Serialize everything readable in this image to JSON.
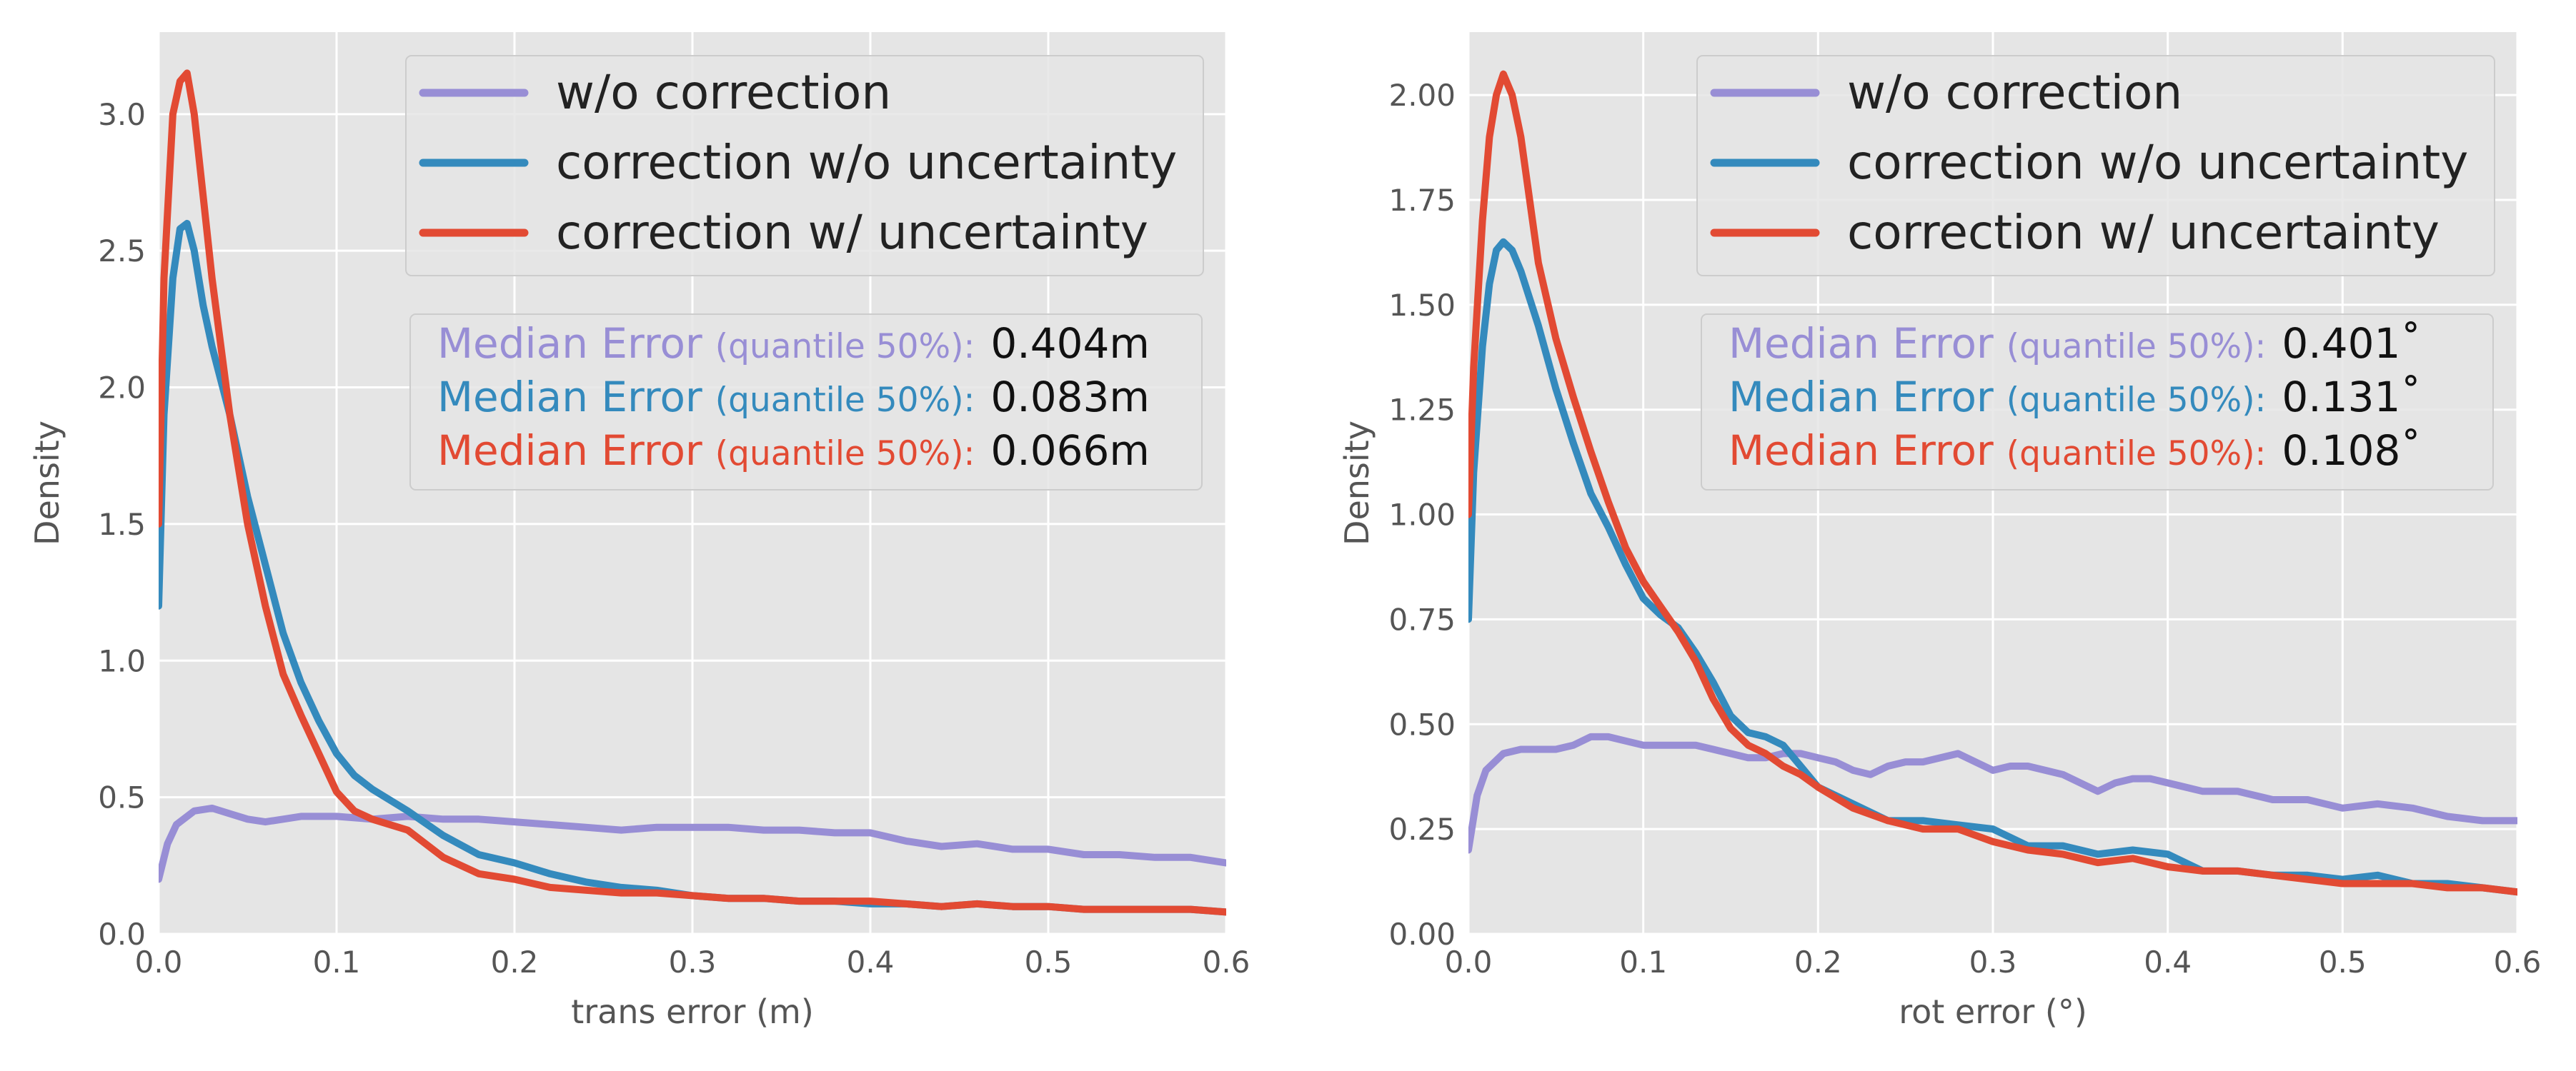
{
  "chart_data": [
    {
      "type": "line",
      "xlabel": "trans error (m)",
      "ylabel": "Density",
      "xlim": [
        0,
        0.6
      ],
      "ylim": [
        0,
        3.3
      ],
      "xticks": [
        "0.0",
        "0.1",
        "0.2",
        "0.3",
        "0.4",
        "0.5",
        "0.6"
      ],
      "yticks": [
        "0.0",
        "0.5",
        "1.0",
        "1.5",
        "2.0",
        "2.5",
        "3.0"
      ],
      "xtick_values": [
        0,
        0.1,
        0.2,
        0.3,
        0.4,
        0.5,
        0.6
      ],
      "ytick_values": [
        0,
        0.5,
        1.0,
        1.5,
        2.0,
        2.5,
        3.0
      ],
      "legend": [
        "w/o correction",
        "correction w/o uncertainty",
        "correction w/ uncertainty"
      ],
      "medians": [
        {
          "label": "Median Error",
          "qualifier": "(quantile 50%):",
          "value": "0.404m"
        },
        {
          "label": "Median Error",
          "qualifier": "(quantile 50%):",
          "value": "0.083m"
        },
        {
          "label": "Median Error",
          "qualifier": "(quantile 50%):",
          "value": "0.066m"
        }
      ],
      "series": [
        {
          "name": "w/o correction",
          "color": "#988ed5",
          "x": [
            0,
            0.005,
            0.01,
            0.02,
            0.03,
            0.04,
            0.05,
            0.06,
            0.07,
            0.08,
            0.1,
            0.12,
            0.14,
            0.16,
            0.18,
            0.2,
            0.22,
            0.24,
            0.26,
            0.28,
            0.3,
            0.32,
            0.34,
            0.36,
            0.38,
            0.4,
            0.42,
            0.44,
            0.46,
            0.48,
            0.5,
            0.52,
            0.54,
            0.56,
            0.58,
            0.6
          ],
          "y": [
            0.2,
            0.33,
            0.4,
            0.45,
            0.46,
            0.44,
            0.42,
            0.41,
            0.42,
            0.43,
            0.43,
            0.42,
            0.43,
            0.42,
            0.42,
            0.41,
            0.4,
            0.39,
            0.38,
            0.39,
            0.39,
            0.39,
            0.38,
            0.38,
            0.37,
            0.37,
            0.34,
            0.32,
            0.33,
            0.31,
            0.31,
            0.29,
            0.29,
            0.28,
            0.28,
            0.26
          ]
        },
        {
          "name": "correction w/o uncertainty",
          "color": "#348abd",
          "x": [
            0,
            0.003,
            0.008,
            0.012,
            0.016,
            0.02,
            0.025,
            0.03,
            0.04,
            0.05,
            0.06,
            0.07,
            0.08,
            0.09,
            0.1,
            0.11,
            0.12,
            0.14,
            0.16,
            0.18,
            0.2,
            0.22,
            0.24,
            0.26,
            0.28,
            0.3,
            0.32,
            0.34,
            0.36,
            0.38,
            0.4,
            0.42,
            0.44,
            0.46,
            0.48,
            0.5,
            0.52,
            0.54,
            0.56,
            0.58,
            0.6
          ],
          "y": [
            1.2,
            1.9,
            2.4,
            2.58,
            2.6,
            2.5,
            2.3,
            2.15,
            1.9,
            1.6,
            1.35,
            1.1,
            0.92,
            0.78,
            0.66,
            0.58,
            0.53,
            0.45,
            0.36,
            0.29,
            0.26,
            0.22,
            0.19,
            0.17,
            0.16,
            0.14,
            0.13,
            0.13,
            0.12,
            0.12,
            0.11,
            0.11,
            0.1,
            0.11,
            0.1,
            0.1,
            0.09,
            0.09,
            0.09,
            0.09,
            0.08
          ]
        },
        {
          "name": "correction w/ uncertainty",
          "color": "#e24a33",
          "x": [
            0,
            0.003,
            0.008,
            0.012,
            0.016,
            0.02,
            0.025,
            0.03,
            0.04,
            0.05,
            0.06,
            0.07,
            0.08,
            0.09,
            0.1,
            0.11,
            0.12,
            0.14,
            0.16,
            0.18,
            0.2,
            0.22,
            0.24,
            0.26,
            0.28,
            0.3,
            0.32,
            0.34,
            0.36,
            0.38,
            0.4,
            0.42,
            0.44,
            0.46,
            0.48,
            0.5,
            0.52,
            0.54,
            0.56,
            0.58,
            0.6
          ],
          "y": [
            1.5,
            2.4,
            3.0,
            3.12,
            3.15,
            3.0,
            2.7,
            2.4,
            1.9,
            1.5,
            1.2,
            0.95,
            0.8,
            0.66,
            0.52,
            0.45,
            0.42,
            0.38,
            0.28,
            0.22,
            0.2,
            0.17,
            0.16,
            0.15,
            0.15,
            0.14,
            0.13,
            0.13,
            0.12,
            0.12,
            0.12,
            0.11,
            0.1,
            0.11,
            0.1,
            0.1,
            0.09,
            0.09,
            0.09,
            0.09,
            0.08
          ]
        }
      ]
    },
    {
      "type": "line",
      "xlabel": "rot error (°)",
      "ylabel": "Density",
      "xlim": [
        0,
        0.6
      ],
      "ylim": [
        0,
        2.15
      ],
      "xticks": [
        "0.0",
        "0.1",
        "0.2",
        "0.3",
        "0.4",
        "0.5",
        "0.6"
      ],
      "yticks": [
        "0.00",
        "0.25",
        "0.50",
        "0.75",
        "1.00",
        "1.25",
        "1.50",
        "1.75",
        "2.00"
      ],
      "xtick_values": [
        0,
        0.1,
        0.2,
        0.3,
        0.4,
        0.5,
        0.6
      ],
      "ytick_values": [
        0,
        0.25,
        0.5,
        0.75,
        1.0,
        1.25,
        1.5,
        1.75,
        2.0
      ],
      "legend": [
        "w/o correction",
        "correction w/o uncertainty",
        "correction w/ uncertainty"
      ],
      "medians": [
        {
          "label": "Median Error",
          "qualifier": "(quantile 50%):",
          "value": "0.401˚"
        },
        {
          "label": "Median Error",
          "qualifier": "(quantile 50%):",
          "value": "0.131˚"
        },
        {
          "label": "Median Error",
          "qualifier": "(quantile 50%):",
          "value": "0.108˚"
        }
      ],
      "series": [
        {
          "name": "w/o correction",
          "color": "#988ed5",
          "x": [
            0,
            0.005,
            0.01,
            0.02,
            0.03,
            0.04,
            0.05,
            0.06,
            0.07,
            0.08,
            0.09,
            0.1,
            0.11,
            0.12,
            0.13,
            0.14,
            0.15,
            0.16,
            0.17,
            0.18,
            0.19,
            0.2,
            0.21,
            0.22,
            0.23,
            0.24,
            0.25,
            0.26,
            0.27,
            0.28,
            0.29,
            0.3,
            0.31,
            0.32,
            0.33,
            0.34,
            0.35,
            0.36,
            0.37,
            0.38,
            0.39,
            0.4,
            0.42,
            0.44,
            0.46,
            0.48,
            0.5,
            0.52,
            0.54,
            0.56,
            0.58,
            0.6
          ],
          "y": [
            0.2,
            0.33,
            0.39,
            0.43,
            0.44,
            0.44,
            0.44,
            0.45,
            0.47,
            0.47,
            0.46,
            0.45,
            0.45,
            0.45,
            0.45,
            0.44,
            0.43,
            0.42,
            0.42,
            0.43,
            0.43,
            0.42,
            0.41,
            0.39,
            0.38,
            0.4,
            0.41,
            0.41,
            0.42,
            0.43,
            0.41,
            0.39,
            0.4,
            0.4,
            0.39,
            0.38,
            0.36,
            0.34,
            0.36,
            0.37,
            0.37,
            0.36,
            0.34,
            0.34,
            0.32,
            0.32,
            0.3,
            0.31,
            0.3,
            0.28,
            0.27,
            0.27
          ]
        },
        {
          "name": "correction w/o uncertainty",
          "color": "#348abd",
          "x": [
            0,
            0.003,
            0.008,
            0.012,
            0.016,
            0.02,
            0.025,
            0.03,
            0.04,
            0.05,
            0.06,
            0.07,
            0.08,
            0.09,
            0.1,
            0.11,
            0.12,
            0.13,
            0.14,
            0.15,
            0.16,
            0.17,
            0.18,
            0.19,
            0.2,
            0.22,
            0.24,
            0.26,
            0.28,
            0.3,
            0.32,
            0.34,
            0.36,
            0.38,
            0.4,
            0.42,
            0.44,
            0.46,
            0.48,
            0.5,
            0.52,
            0.54,
            0.56,
            0.58,
            0.6
          ],
          "y": [
            0.75,
            1.1,
            1.4,
            1.55,
            1.63,
            1.65,
            1.63,
            1.58,
            1.45,
            1.3,
            1.17,
            1.05,
            0.97,
            0.88,
            0.8,
            0.76,
            0.73,
            0.67,
            0.6,
            0.52,
            0.48,
            0.47,
            0.45,
            0.4,
            0.35,
            0.31,
            0.27,
            0.27,
            0.26,
            0.25,
            0.21,
            0.21,
            0.19,
            0.2,
            0.19,
            0.15,
            0.15,
            0.14,
            0.14,
            0.13,
            0.14,
            0.12,
            0.12,
            0.11,
            0.1
          ]
        },
        {
          "name": "correction w/ uncertainty",
          "color": "#e24a33",
          "x": [
            0,
            0.003,
            0.008,
            0.012,
            0.016,
            0.02,
            0.025,
            0.03,
            0.04,
            0.05,
            0.06,
            0.07,
            0.08,
            0.09,
            0.1,
            0.11,
            0.12,
            0.13,
            0.14,
            0.15,
            0.16,
            0.17,
            0.18,
            0.19,
            0.2,
            0.22,
            0.24,
            0.26,
            0.28,
            0.3,
            0.32,
            0.34,
            0.36,
            0.38,
            0.4,
            0.42,
            0.44,
            0.46,
            0.48,
            0.5,
            0.52,
            0.54,
            0.56,
            0.58,
            0.6
          ],
          "y": [
            1.0,
            1.35,
            1.7,
            1.9,
            2.0,
            2.05,
            2.0,
            1.9,
            1.6,
            1.42,
            1.28,
            1.15,
            1.03,
            0.92,
            0.84,
            0.78,
            0.72,
            0.65,
            0.56,
            0.49,
            0.45,
            0.43,
            0.4,
            0.38,
            0.35,
            0.3,
            0.27,
            0.25,
            0.25,
            0.22,
            0.2,
            0.19,
            0.17,
            0.18,
            0.16,
            0.15,
            0.15,
            0.14,
            0.13,
            0.12,
            0.12,
            0.12,
            0.11,
            0.11,
            0.1
          ]
        }
      ]
    }
  ]
}
